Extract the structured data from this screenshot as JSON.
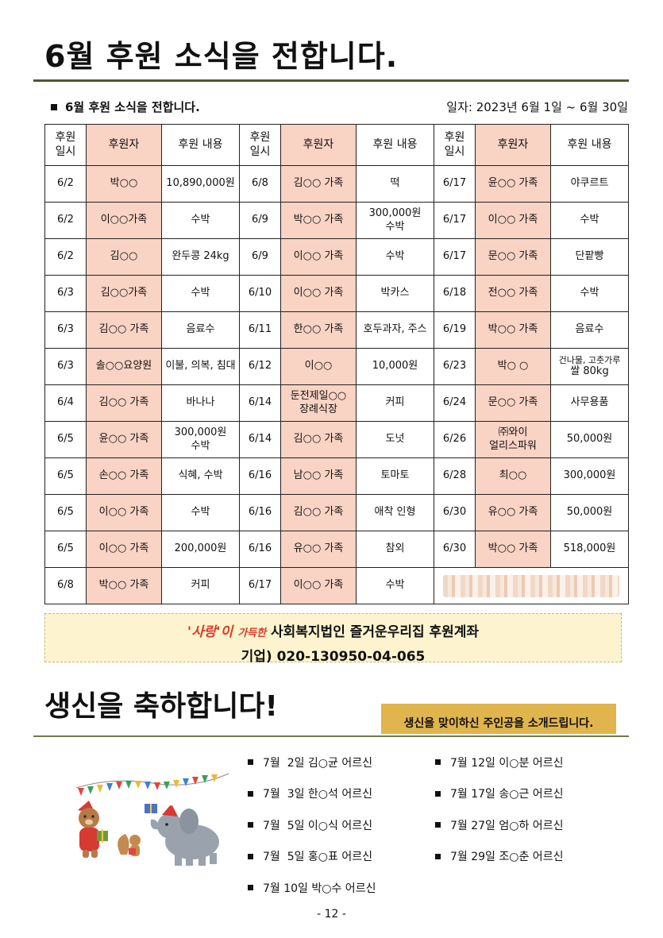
{
  "title": "6월 후원 소식을 전합니다.",
  "section": {
    "heading": "6월 후원 소식을 전합니다.",
    "date_range": "일자: 2023년 6월 1일 ~ 6월 30일"
  },
  "table": {
    "headers": {
      "date_top": "후원",
      "date_bottom": "일시",
      "donor": "후원자",
      "item": "후원 내용"
    },
    "rows": [
      [
        [
          "6/2",
          "박○○",
          "10,890,000원"
        ],
        [
          "6/8",
          "김○○ 가족",
          "떡"
        ],
        [
          "6/17",
          "윤○○ 가족",
          "야쿠르트"
        ]
      ],
      [
        [
          "6/2",
          "이○○가족",
          "수박"
        ],
        [
          "6/9",
          "박○○ 가족",
          "300,000원|수박"
        ],
        [
          "6/17",
          "이○○ 가족",
          "수박"
        ]
      ],
      [
        [
          "6/2",
          "김○○",
          "완두콩 24kg"
        ],
        [
          "6/9",
          "이○○ 가족",
          "수박"
        ],
        [
          "6/17",
          "문○○ 가족",
          "단팥빵"
        ]
      ],
      [
        [
          "6/3",
          "김○○가족",
          "수박"
        ],
        [
          "6/10",
          "이○○ 가족",
          "박카스"
        ],
        [
          "6/18",
          "전○○ 가족",
          "수박"
        ]
      ],
      [
        [
          "6/3",
          "김○○ 가족",
          "음료수"
        ],
        [
          "6/11",
          "한○○ 가족",
          "호두과자, 주스"
        ],
        [
          "6/19",
          "박○○ 가족",
          "음료수"
        ]
      ],
      [
        [
          "6/3",
          "솔○○요양원",
          "이불, 의복, 침대"
        ],
        [
          "6/12",
          "이○○",
          "10,000원"
        ],
        [
          "6/23",
          "박○ ○",
          "건나물, 고춧가루|쌀 80kg"
        ]
      ],
      [
        [
          "6/4",
          "김○○ 가족",
          "바나나"
        ],
        [
          "6/14",
          "둔전제일○○|장례식장",
          "커피"
        ],
        [
          "6/24",
          "문○○ 가족",
          "사무용품"
        ]
      ],
      [
        [
          "6/5",
          "윤○○ 가족",
          "300,000원|수박"
        ],
        [
          "6/14",
          "김○○ 가족",
          "도넛"
        ],
        [
          "6/26",
          "㈜와이|얼리스파워",
          "50,000원"
        ]
      ],
      [
        [
          "6/5",
          "손○○ 가족",
          "식혜, 수박"
        ],
        [
          "6/16",
          "남○○ 가족",
          "토마토"
        ],
        [
          "6/28",
          "최○○",
          "300,000원"
        ]
      ],
      [
        [
          "6/5",
          "이○○ 가족",
          "수박"
        ],
        [
          "6/16",
          "김○○ 가족",
          "애착 인형"
        ],
        [
          "6/30",
          "유○○ 가족",
          "50,000원"
        ]
      ],
      [
        [
          "6/5",
          "이○○ 가족",
          "200,000원"
        ],
        [
          "6/16",
          "유○○ 가족",
          "참외"
        ],
        [
          "6/30",
          "박○○ 가족",
          "518,000원"
        ]
      ],
      [
        [
          "6/8",
          "박○○ 가족",
          "커피"
        ],
        [
          "6/17",
          "이○○ 가족",
          "수박"
        ],
        null
      ]
    ]
  },
  "account": {
    "love_word": "'사랑'이",
    "love_sub": "가득한",
    "line1": "사회복지법인 즐거운우리집 후원계좌",
    "line2": "기업) 020-130950-04-065"
  },
  "birthday": {
    "title": "생신을 축하합니다!",
    "badge": "생신을 맞이하신 주인공을 소개드립니다.",
    "left": [
      "7월  2일 김○균 어르신",
      "7월  3일 한○석 어르신",
      "7월  5일 이○식 어르신",
      "7월  5일 홍○표 어르신",
      "7월 10일 박○수 어르신"
    ],
    "right": [
      "7월 12일 이○분 어르신",
      "7월 17일 송○근 어르신",
      "7월 27일 엄○하 어르신",
      "7월 29일 조○춘 어르신"
    ]
  },
  "page_number": "- 12 -",
  "colors": {
    "pink": "#f9d3c4",
    "olive_rule": "#4d5a2e",
    "badge": "#e1b54d",
    "account_bg": "#fdf4cf",
    "love_red": "#d93b2a"
  }
}
